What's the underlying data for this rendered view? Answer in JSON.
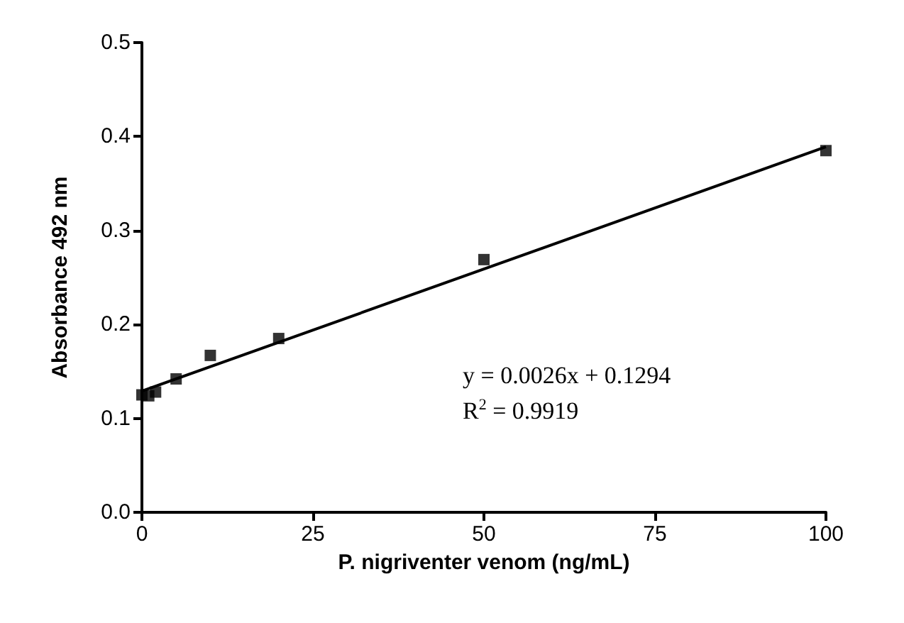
{
  "chart_data": {
    "type": "scatter",
    "xlabel": "P. nigriventer venom (ng/mL)",
    "ylabel": "Absorbance 492 nm",
    "series": [
      {
        "color": "#000000",
        "x": [
          0,
          1,
          2,
          5,
          10,
          20,
          50,
          100
        ],
        "values": [
          0.125,
          0.124,
          0.128,
          0.142,
          0.167,
          0.185,
          0.269,
          0.385
        ],
        "marker": "square"
      },
      {
        "type": "line",
        "color": "#000000",
        "x": [
          0,
          100
        ],
        "values": [
          0.129,
          0.389
        ],
        "marker": "none",
        "line_style": "solid"
      }
    ],
    "xlim": [
      0,
      100
    ],
    "xticks": [
      0,
      25,
      50,
      75,
      100
    ],
    "ylim": [
      0,
      0.5
    ],
    "yticks": [
      {
        "value": 0,
        "label": "0.0"
      },
      0.1,
      0.2,
      0.3,
      0.4,
      0.5
    ],
    "grid": false,
    "annotations": [
      "y = 0.0026x + 0.1294",
      "R$^{2}$ = 0.9919"
    ]
  }
}
